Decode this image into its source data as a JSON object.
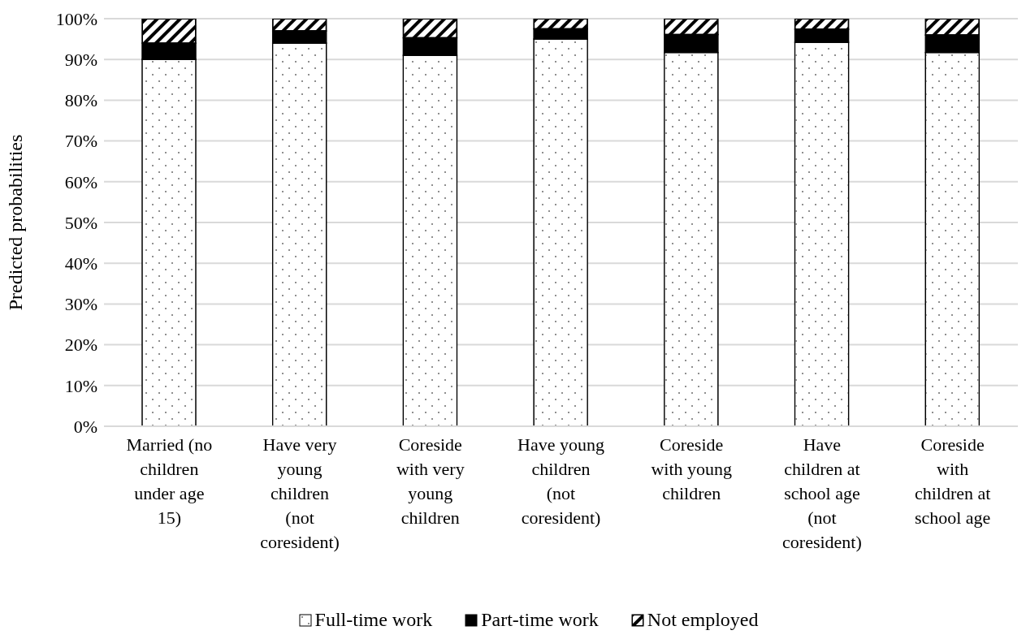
{
  "chart_data": {
    "type": "bar",
    "stacked": true,
    "ylabel": "Predicted probabilities",
    "categories": [
      "Married (no children under age 15)",
      "Have very young children (not coresident)",
      "Coreside with very young children",
      "Have young children (not coresident)",
      "Coreside with young children",
      "Have children at school age (not coresident)",
      "Coreside with children at school age"
    ],
    "series": [
      {
        "name": "Full-time work",
        "color": "#ffffff",
        "values": [
          90,
          94,
          91,
          95,
          91.7,
          94.2,
          91.7
        ]
      },
      {
        "name": "Part-time work",
        "color": "#000000",
        "values": [
          4,
          3,
          4.3,
          2.5,
          4.4,
          3.2,
          4.3
        ]
      },
      {
        "name": "Not employed",
        "color": "#000000",
        "values": [
          6,
          3,
          4.7,
          2.5,
          3.9,
          2.6,
          4
        ]
      }
    ],
    "ylim": [
      0,
      100
    ],
    "yticks": [
      {
        "value": 0,
        "label": "0%"
      },
      {
        "value": 10,
        "label": "10%"
      },
      {
        "value": 20,
        "label": "20%"
      },
      {
        "value": 30,
        "label": "30%"
      },
      {
        "value": 40,
        "label": "40%"
      },
      {
        "value": 50,
        "label": "50%"
      },
      {
        "value": 60,
        "label": "60%"
      },
      {
        "value": 70,
        "label": "70%"
      },
      {
        "value": 80,
        "label": "80%"
      },
      {
        "value": 90,
        "label": "90%"
      },
      {
        "value": 100,
        "label": "100%"
      }
    ],
    "grid": "y",
    "legend": "bottom"
  }
}
